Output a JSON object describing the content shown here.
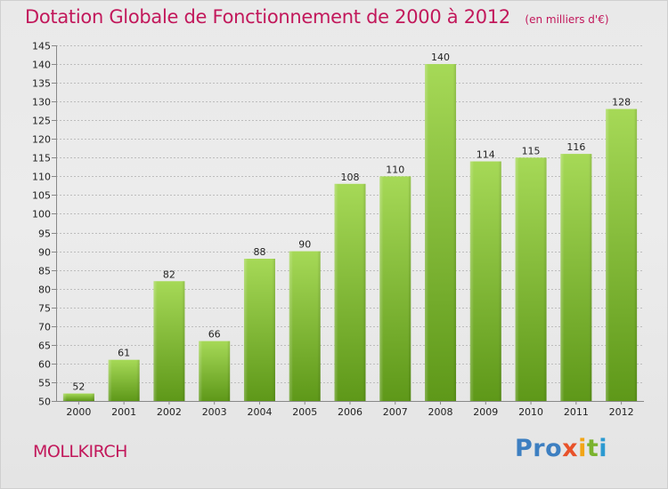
{
  "header": {
    "title": "Dotation Globale de Fonctionnement de 2000 à 2012",
    "subtitle": "(en milliers d'€)"
  },
  "footer": {
    "commune": "MOLLKIRCH",
    "brand_parts": [
      "Pro",
      "x",
      "i",
      "t",
      "i"
    ]
  },
  "colors": {
    "accent": "#c2185b",
    "bar_light": "#9ed24f",
    "bar_dark": "#5f9a1a",
    "grid": "#bdbdbd"
  },
  "chart_data": {
    "type": "bar",
    "title": "Dotation Globale de Fonctionnement de 2000 à 2012",
    "subtitle": "(en milliers d'€)",
    "xlabel": "",
    "ylabel": "",
    "categories": [
      "2000",
      "2001",
      "2002",
      "2003",
      "2004",
      "2005",
      "2006",
      "2007",
      "2008",
      "2009",
      "2010",
      "2011",
      "2012"
    ],
    "values": [
      52,
      61,
      82,
      66,
      88,
      90,
      108,
      110,
      140,
      114,
      115,
      116,
      128
    ],
    "ylim": [
      50,
      145
    ],
    "yticks": [
      50,
      55,
      60,
      65,
      70,
      75,
      80,
      85,
      90,
      95,
      100,
      105,
      110,
      115,
      120,
      125,
      130,
      135,
      140,
      145
    ],
    "grid": true,
    "data_labels": true
  }
}
